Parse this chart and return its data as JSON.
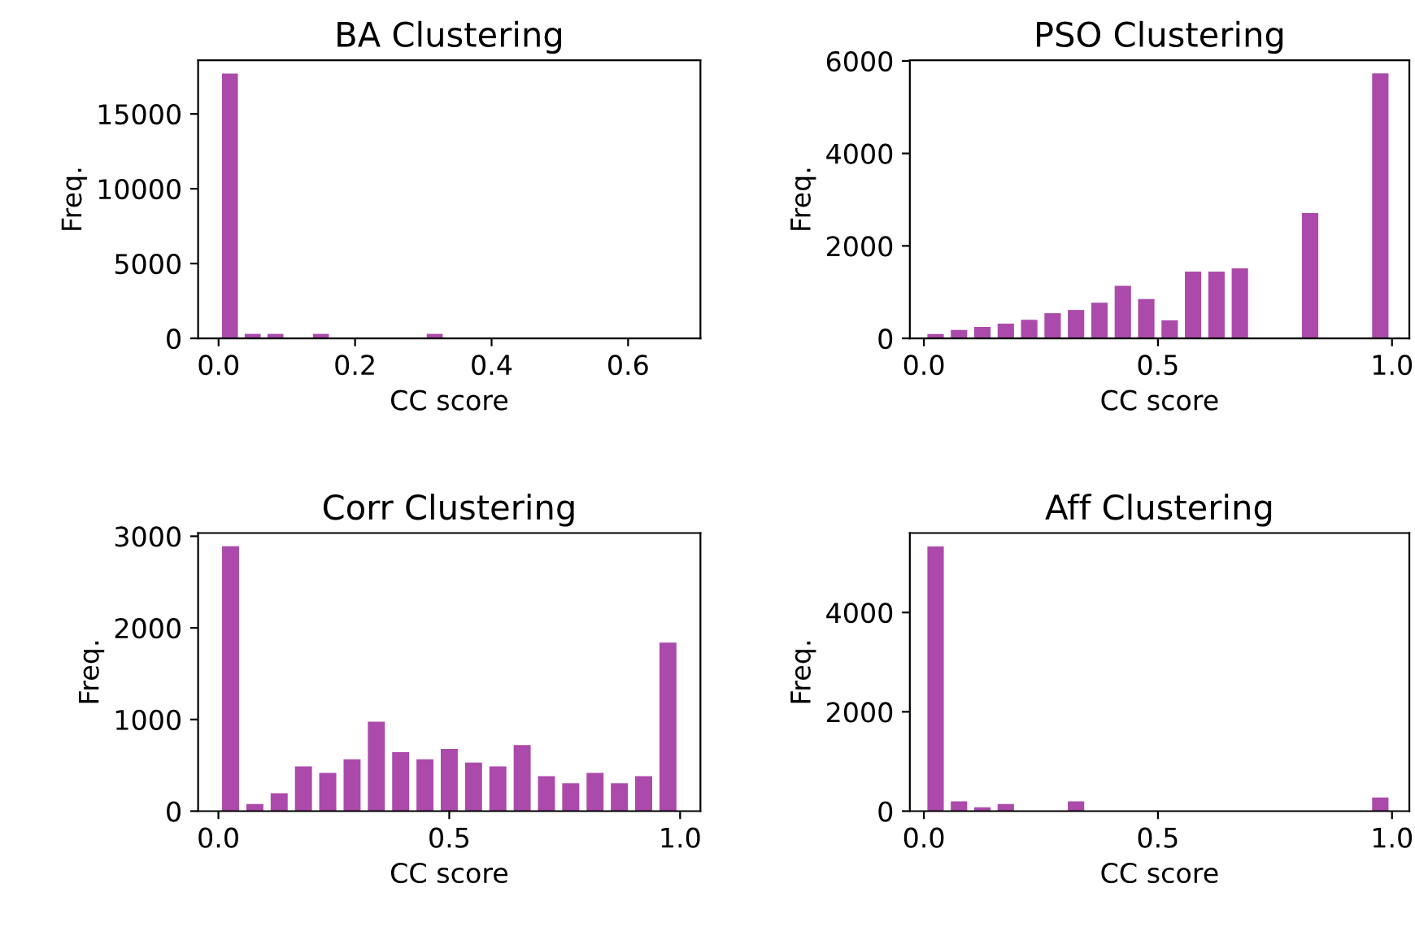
{
  "chart_data": [
    {
      "type": "histogram",
      "title": "BA Clustering",
      "xlabel": "CC score",
      "ylabel": "Freq.",
      "color": "#ab4aab",
      "bins": [
        0,
        0.0333,
        0.0667,
        0.1,
        0.1333,
        0.1667,
        0.2,
        0.2333,
        0.2667,
        0.3,
        0.3333,
        0.3667,
        0.4,
        0.4333,
        0.4667,
        0.5,
        0.5333,
        0.5667,
        0.6,
        0.6333,
        0.6667
      ],
      "values": [
        17700,
        300,
        300,
        0,
        300,
        0,
        0,
        0,
        0,
        300,
        0,
        0,
        0,
        0,
        0,
        0,
        0,
        0,
        0,
        0
      ],
      "xlim": [
        -0.03,
        0.706
      ],
      "ylim": [
        0,
        18585
      ],
      "xticks": [
        {
          "value": 0,
          "label": "0.0"
        },
        {
          "value": 0.2,
          "label": "0.2"
        },
        {
          "value": 0.4,
          "label": "0.4"
        },
        {
          "value": 0.6,
          "label": "0.6"
        }
      ],
      "yticks": [
        0,
        5000,
        10000,
        15000
      ],
      "grid": false
    },
    {
      "type": "histogram",
      "title": "PSO Clustering",
      "xlabel": "CC score",
      "ylabel": "Freq.",
      "color": "#ab4aab",
      "bins": [
        0,
        0.05,
        0.1,
        0.15,
        0.2,
        0.25,
        0.3,
        0.35,
        0.4,
        0.45,
        0.5,
        0.55,
        0.6,
        0.65,
        0.7,
        0.75,
        0.8,
        0.85,
        0.9,
        0.95,
        1.0
      ],
      "values": [
        95,
        180,
        250,
        320,
        400,
        545,
        615,
        770,
        1135,
        850,
        390,
        1445,
        1445,
        1515,
        0,
        0,
        2710,
        0,
        0,
        5730
      ],
      "xlim": [
        -0.03,
        1.037
      ],
      "ylim": [
        0,
        6015
      ],
      "xticks": [
        {
          "value": 0,
          "label": "0.0"
        },
        {
          "value": 0.5,
          "label": "0.5"
        },
        {
          "value": 1,
          "label": "1.0"
        }
      ],
      "yticks": [
        0,
        2000,
        4000,
        6000
      ],
      "grid": false
    },
    {
      "type": "histogram",
      "title": "Corr Clustering",
      "xlabel": "CC score",
      "ylabel": "Freq.",
      "color": "#ab4aab",
      "bins": [
        0,
        0.0526,
        0.1053,
        0.1579,
        0.2105,
        0.2632,
        0.3158,
        0.3684,
        0.4211,
        0.4737,
        0.5263,
        0.5789,
        0.6316,
        0.6842,
        0.7368,
        0.7895,
        0.8421,
        0.8947,
        0.9474,
        1.0
      ],
      "values": [
        2890,
        77,
        196,
        488,
        417,
        565,
        976,
        643,
        565,
        679,
        530,
        488,
        720,
        381,
        304,
        417,
        304,
        381,
        1839
      ],
      "xlim": [
        -0.044,
        1.044
      ],
      "ylim": [
        0,
        3035
      ],
      "xticks": [
        {
          "value": 0,
          "label": "0.0"
        },
        {
          "value": 0.5,
          "label": "0.5"
        },
        {
          "value": 1,
          "label": "1.0"
        }
      ],
      "yticks": [
        0,
        1000,
        2000,
        3000
      ],
      "grid": false
    },
    {
      "type": "histogram",
      "title": "Aff Clustering",
      "xlabel": "CC score",
      "ylabel": "Freq.",
      "color": "#ab4aab",
      "bins": [
        0,
        0.05,
        0.1,
        0.15,
        0.2,
        0.25,
        0.3,
        0.35,
        0.4,
        0.45,
        0.5,
        0.55,
        0.6,
        0.65,
        0.7,
        0.75,
        0.8,
        0.85,
        0.9,
        0.95,
        1.0
      ],
      "values": [
        5330,
        198,
        77,
        143,
        0,
        0,
        198,
        0,
        0,
        0,
        0,
        0,
        0,
        0,
        0,
        0,
        0,
        0,
        0,
        275
      ],
      "xlim": [
        -0.03,
        1.037
      ],
      "ylim": [
        0,
        5600
      ],
      "xticks": [
        {
          "value": 0,
          "label": "0.0"
        },
        {
          "value": 0.5,
          "label": "0.5"
        },
        {
          "value": 1,
          "label": "1.0"
        }
      ],
      "yticks": [
        0,
        2000,
        4000
      ],
      "grid": false
    }
  ]
}
